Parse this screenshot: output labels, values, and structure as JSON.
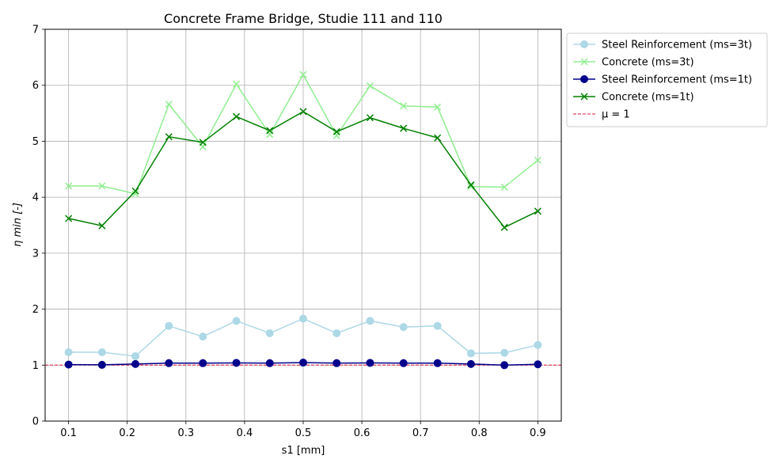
{
  "chart_data": {
    "type": "line",
    "title": "Concrete Frame Bridge, Studie 111 and 110",
    "xlabel": "s1 [mm]",
    "ylabel": "η min [-]",
    "xlim": [
      0.06,
      0.94
    ],
    "ylim": [
      0,
      7
    ],
    "xticks": [
      "0.1",
      "0.2",
      "0.3",
      "0.4",
      "0.5",
      "0.6",
      "0.7",
      "0.8",
      "0.9"
    ],
    "yticks": [
      "0",
      "1",
      "2",
      "3",
      "4",
      "5",
      "6",
      "7"
    ],
    "grid": true,
    "legend_position": "outside-upper-right",
    "x": [
      0.1,
      0.157,
      0.214,
      0.271,
      0.329,
      0.386,
      0.443,
      0.5,
      0.557,
      0.614,
      0.671,
      0.729,
      0.786,
      0.843,
      0.9
    ],
    "series": [
      {
        "name": "Steel Reinforcement (ms=3t)",
        "color": "#add8e6",
        "marker": "circle",
        "values": [
          1.23,
          1.23,
          1.16,
          1.7,
          1.51,
          1.79,
          1.57,
          1.83,
          1.57,
          1.79,
          1.68,
          1.7,
          1.21,
          1.22,
          1.36
        ]
      },
      {
        "name": "Concrete (ms=3t)",
        "color": "#90ee90",
        "marker": "x",
        "values": [
          4.2,
          4.2,
          4.06,
          5.66,
          4.9,
          6.02,
          5.12,
          6.19,
          5.1,
          5.99,
          5.63,
          5.61,
          4.19,
          4.18,
          4.66
        ]
      },
      {
        "name": "Steel Reinforcement (ms=1t)",
        "color": "#00008b",
        "marker": "circle",
        "values": [
          1.01,
          1.005,
          1.02,
          1.035,
          1.035,
          1.04,
          1.035,
          1.045,
          1.035,
          1.04,
          1.035,
          1.035,
          1.02,
          1.0,
          1.015
        ]
      },
      {
        "name": "Concrete (ms=1t)",
        "color": "#008000",
        "marker": "x",
        "values": [
          3.62,
          3.49,
          4.11,
          5.08,
          4.98,
          5.44,
          5.19,
          5.53,
          5.17,
          5.42,
          5.23,
          5.06,
          4.22,
          3.46,
          3.75
        ]
      }
    ],
    "reference_line": {
      "name": "μ = 1",
      "y": 1,
      "color": "#dc143c",
      "style": "dashed"
    }
  }
}
